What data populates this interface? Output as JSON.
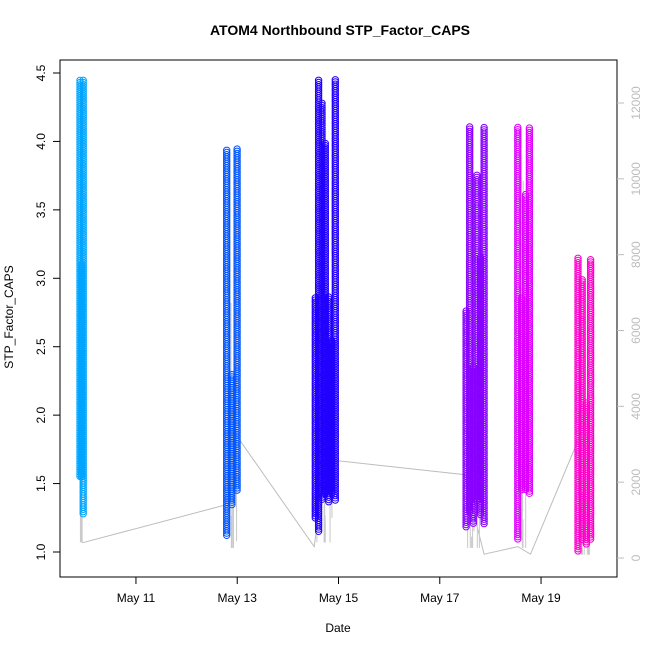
{
  "chart_data": {
    "type": "scatter",
    "title": "ATOM4 Northbound STP_Factor_CAPS",
    "xlabel": "Date",
    "ylabel": "STP_Factor_CAPS",
    "xlim": [
      "2024-05-09T12:00",
      "2024-05-20T12:00"
    ],
    "ylim": [
      1.0,
      4.5
    ],
    "y2lim": [
      0,
      12000
    ],
    "x_ticks": [
      {
        "date": "2024-05-11",
        "label": "May 11"
      },
      {
        "date": "2024-05-13",
        "label": "May 13"
      },
      {
        "date": "2024-05-15",
        "label": "May 15"
      },
      {
        "date": "2024-05-17",
        "label": "May 17"
      },
      {
        "date": "2024-05-19",
        "label": "May 19"
      }
    ],
    "y_ticks": [
      {
        "value": 1.0,
        "label": "1.0"
      },
      {
        "value": 1.5,
        "label": "1.5"
      },
      {
        "value": 2.0,
        "label": "2.0"
      },
      {
        "value": 2.5,
        "label": "2.5"
      },
      {
        "value": 3.0,
        "label": "3.0"
      },
      {
        "value": 3.5,
        "label": "3.5"
      },
      {
        "value": 4.0,
        "label": "4.0"
      },
      {
        "value": 4.5,
        "label": "4.5"
      }
    ],
    "y2_ticks": [
      {
        "value": 0,
        "label": "0"
      },
      {
        "value": 2000,
        "label": "2000"
      },
      {
        "value": 4000,
        "label": "4000"
      },
      {
        "value": 6000,
        "label": "6000"
      },
      {
        "value": 8000,
        "label": "8000"
      },
      {
        "value": 10000,
        "label": "10000"
      },
      {
        "value": 12000,
        "label": "12000"
      }
    ],
    "clusters": [
      {
        "start": "2024-05-09T21:30",
        "end": "2024-05-09T23:00",
        "ymin": 1.07,
        "ymax": 4.46,
        "color": "#00a5ff"
      },
      {
        "start": "2024-05-12T19:00",
        "end": "2024-05-12T23:55",
        "ymin": 1.03,
        "ymax": 3.95,
        "color": "#0055ff"
      },
      {
        "start": "2024-05-14T13:00",
        "end": "2024-05-14T22:30",
        "ymin": 1.07,
        "ymax": 4.46,
        "color": "#2200ff"
      },
      {
        "start": "2024-05-17T12:30",
        "end": "2024-05-17T21:00",
        "ymin": 1.03,
        "ymax": 4.11,
        "color": "#8800ff"
      },
      {
        "start": "2024-05-18T13:00",
        "end": "2024-05-18T18:30",
        "ymin": 1.03,
        "ymax": 4.11,
        "color": "#dd00ff"
      },
      {
        "start": "2024-05-19T17:30",
        "end": "2024-05-19T23:30",
        "ymin": 0.98,
        "ymax": 3.15,
        "color": "#ff00cc"
      }
    ],
    "secondary_series": {
      "color": "#bdbdbd",
      "points": [
        {
          "x": "2024-05-09T22:30",
          "y": 400
        },
        {
          "x": "2024-05-12T18:30",
          "y": 1400
        },
        {
          "x": "2024-05-12T21:30",
          "y": 3400
        },
        {
          "x": "2024-05-14T12:30",
          "y": 300
        },
        {
          "x": "2024-05-14T18:00",
          "y": 2600
        },
        {
          "x": "2024-05-17T11:30",
          "y": 2200
        },
        {
          "x": "2024-05-17T21:00",
          "y": 100
        },
        {
          "x": "2024-05-18T13:00",
          "y": 300
        },
        {
          "x": "2024-05-18T19:00",
          "y": 100
        },
        {
          "x": "2024-05-19T17:30",
          "y": 3100
        }
      ]
    },
    "grid": false,
    "legend": "none"
  }
}
